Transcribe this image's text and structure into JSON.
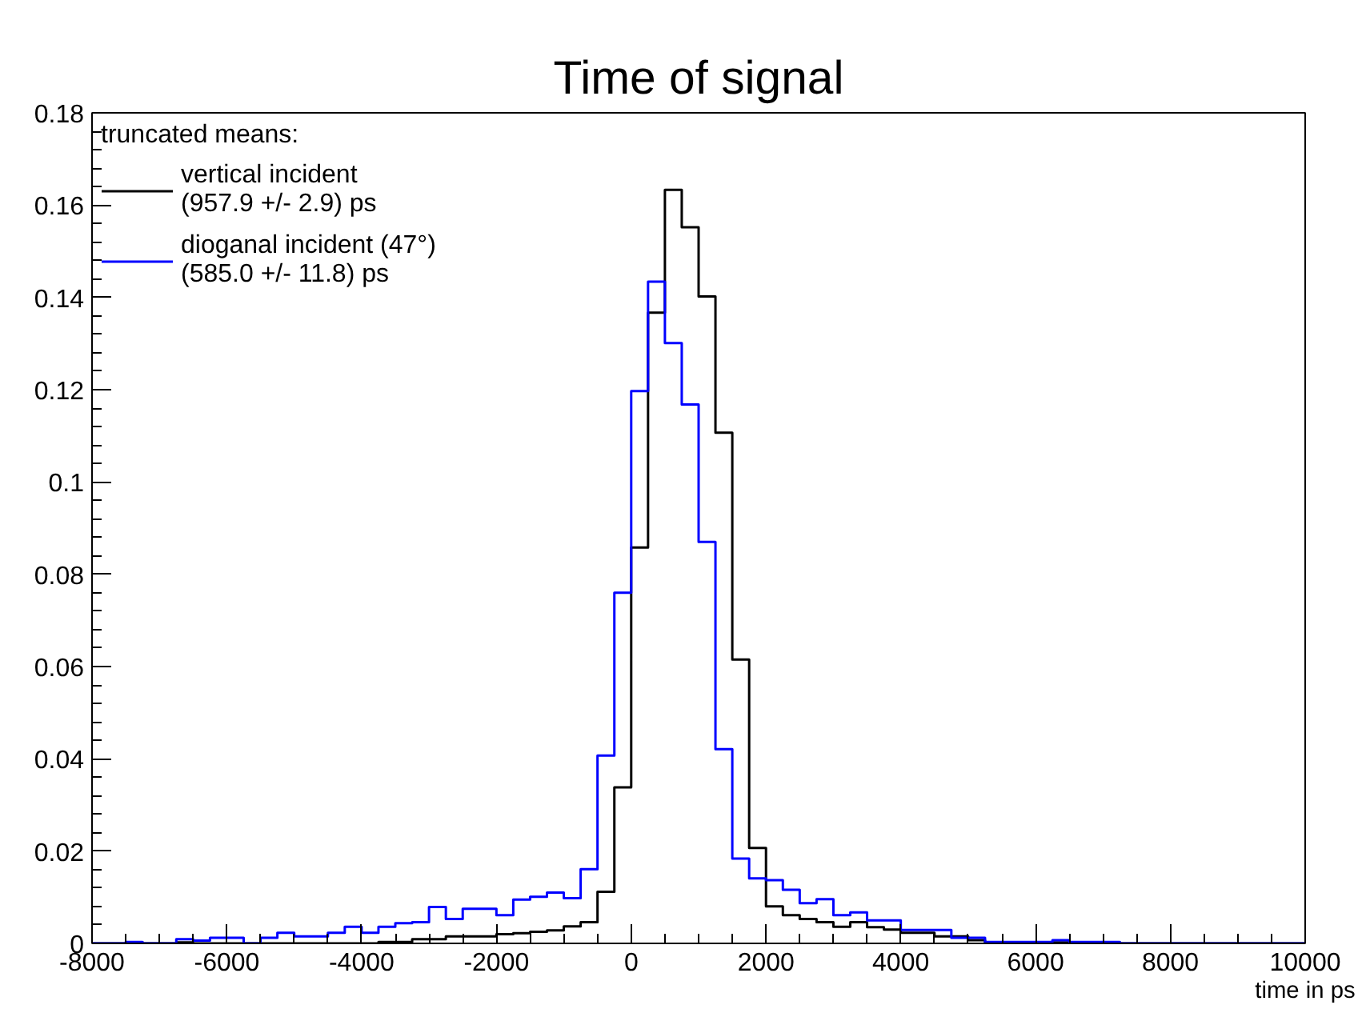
{
  "chart_data": {
    "type": "histogram",
    "title": "Time of signal",
    "xlabel": "time in ps",
    "legend_title": "truncated means:",
    "bins": [
      -8000,
      -7750,
      -7500,
      -7250,
      -7000,
      -6750,
      -6500,
      -6250,
      -6000,
      -5750,
      -5500,
      -5250,
      -5000,
      -4750,
      -4500,
      -4250,
      -4000,
      -3750,
      -3500,
      -3250,
      -3000,
      -2750,
      -2500,
      -2250,
      -2000,
      -1750,
      -1500,
      -1250,
      -1000,
      -750,
      -500,
      -250,
      0,
      250,
      500,
      750,
      1000,
      1250,
      1500,
      1750,
      2000,
      2250,
      2500,
      2750,
      3000,
      3250,
      3500,
      3750,
      4000,
      4250,
      4500,
      4750,
      5000,
      5250,
      5500,
      5750,
      6000,
      6250,
      6500,
      6750,
      7000,
      7250,
      7500,
      7750,
      8000,
      8250,
      8500,
      8750,
      9000,
      9250,
      9500,
      9750,
      10000
    ],
    "series": [
      {
        "name": "vertical incident\n(957.9 +/- 2.9) ps",
        "color": "#000000",
        "values": [
          0,
          0,
          0.0002,
          0,
          0,
          0.0002,
          0,
          0,
          0,
          0,
          0,
          0,
          0,
          0,
          0,
          0,
          0,
          0.0003,
          0.0003,
          0.0009,
          0.0009,
          0.0015,
          0.0015,
          0.0015,
          0.002,
          0.0022,
          0.0025,
          0.0028,
          0.0037,
          0.0046,
          0.0112,
          0.0338,
          0.0858,
          0.1367,
          0.1633,
          0.1552,
          0.1402,
          0.1107,
          0.0615,
          0.0207,
          0.008,
          0.0061,
          0.0053,
          0.0046,
          0.0036,
          0.0046,
          0.0035,
          0.003,
          0.0023,
          0.0023,
          0.0015,
          0.0015,
          0.0007,
          0.0002,
          0.0002,
          0.0002,
          0.0002,
          0.0002,
          0.0002,
          0.0002,
          0.0002,
          0,
          0,
          0,
          0,
          0,
          0,
          0,
          0,
          0,
          0,
          0
        ]
      },
      {
        "name": "dioganal incident (47°)\n(585.0 +/- 11.8) ps",
        "color": "#0000ff",
        "values": [
          0,
          0,
          0.0003,
          0,
          0,
          0.0009,
          0.0006,
          0.0012,
          0.0012,
          0,
          0.0012,
          0.0023,
          0.0015,
          0.0015,
          0.0023,
          0.0036,
          0.0023,
          0.0036,
          0.0044,
          0.0046,
          0.0079,
          0.0053,
          0.0075,
          0.0075,
          0.0061,
          0.0095,
          0.0101,
          0.011,
          0.0098,
          0.0161,
          0.0407,
          0.076,
          0.1197,
          0.1434,
          0.1301,
          0.1168,
          0.087,
          0.0421,
          0.0184,
          0.0141,
          0.0137,
          0.0116,
          0.0087,
          0.0096,
          0.0061,
          0.0067,
          0.005,
          0.005,
          0.0029,
          0.0029,
          0.0029,
          0.0012,
          0.0012,
          0.0003,
          0.0003,
          0.0003,
          0.0003,
          0.0007,
          0.0003,
          0.0003,
          0.0003,
          0,
          0,
          0,
          0,
          0,
          0,
          0,
          0,
          0,
          0,
          0
        ]
      }
    ],
    "xlim": [
      -8000,
      10000
    ],
    "ylim": [
      0,
      0.18
    ],
    "xticks": [
      -8000,
      -6000,
      -4000,
      -2000,
      0,
      2000,
      4000,
      6000,
      8000,
      10000
    ],
    "yticks": [
      0,
      0.02,
      0.04,
      0.06,
      0.08,
      {
        "value": 0.1,
        "label": "0.1"
      },
      0.12,
      0.14,
      0.16,
      0.18
    ],
    "grid": false,
    "legend": "top left"
  }
}
